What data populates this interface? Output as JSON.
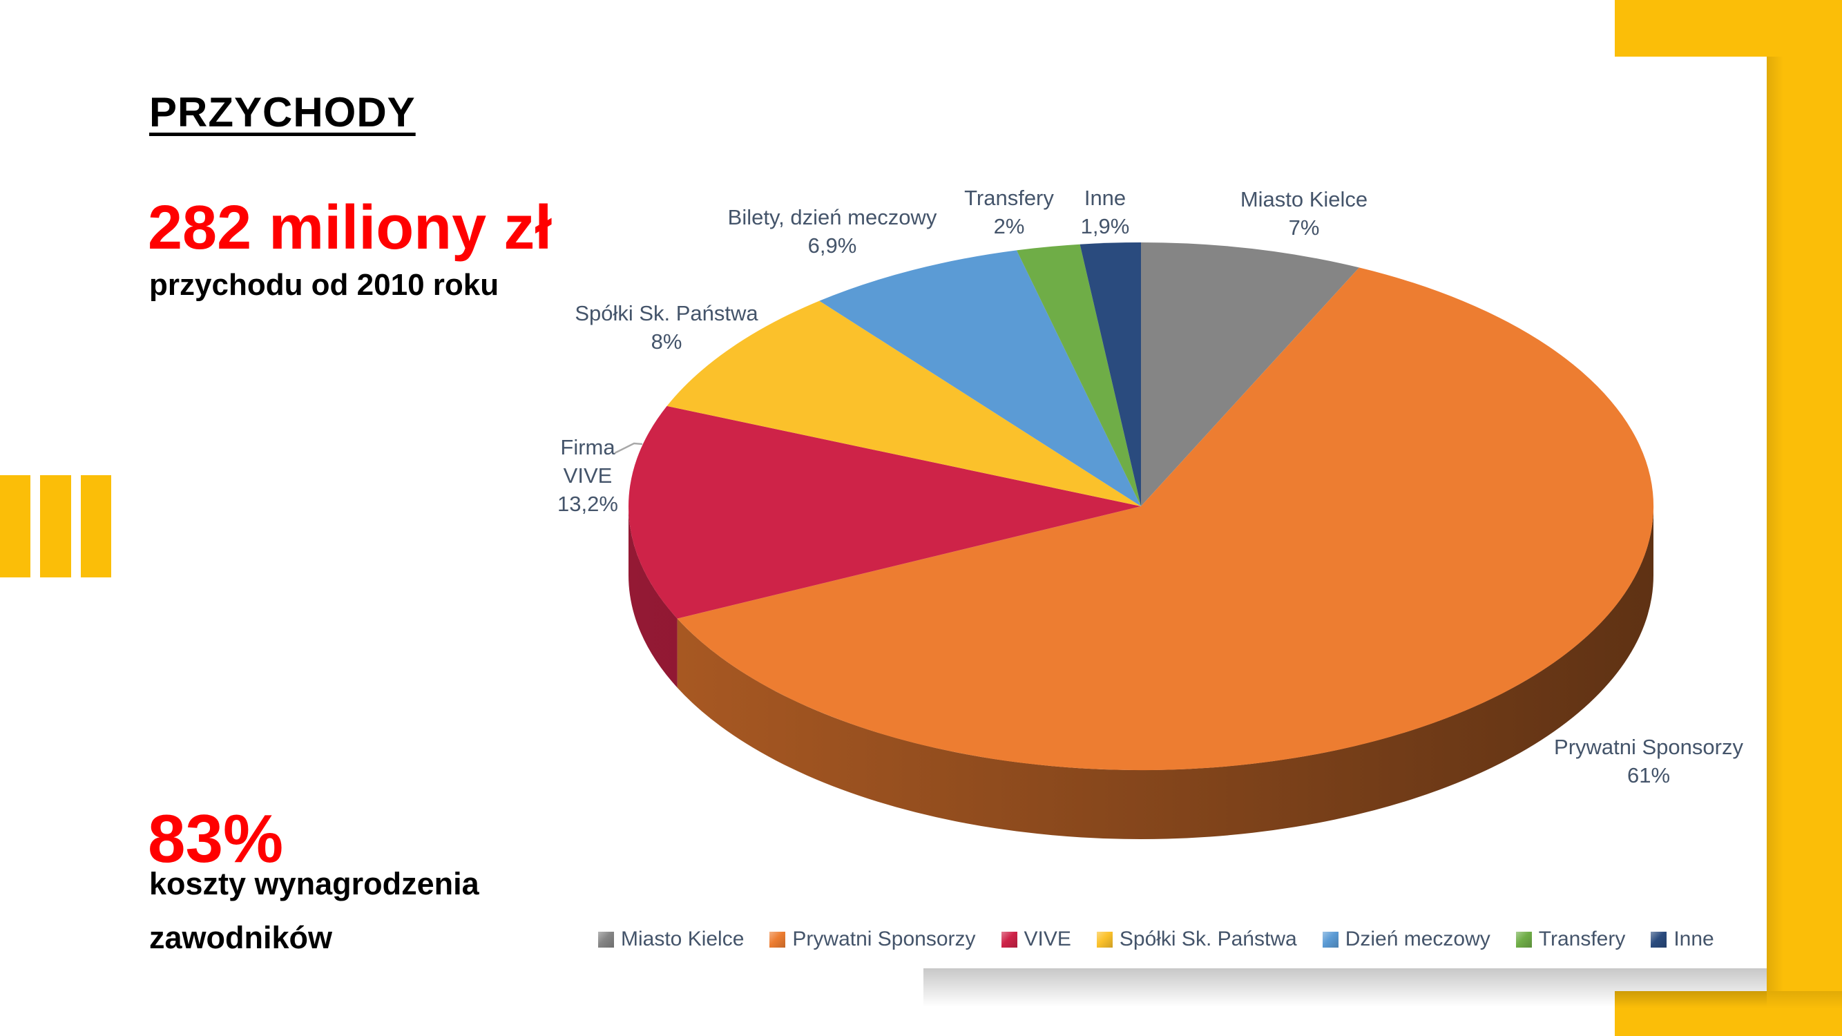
{
  "colors": {
    "accent_yellow": "#FBBE08",
    "headline_red": "#FF0000",
    "label_slate": "#44546A",
    "panel_white": "#FFFFFF"
  },
  "left_panel": {
    "title": "PRZYCHODY",
    "revenue_headline": "282 miliony zł",
    "revenue_subline": "przychodu od 2010 roku",
    "costs_headline": "83%",
    "costs_line1": "koszty wynagrodzenia",
    "costs_line2": "zawodników"
  },
  "chart_data": {
    "type": "pie",
    "is_3d": true,
    "start_angle_deg": 0,
    "direction": "clockwise",
    "legend_position": "bottom",
    "slices": [
      {
        "label": "Miasto Kielce",
        "legend": "Miasto Kielce",
        "value": 7,
        "display": "7%",
        "color": "#858585"
      },
      {
        "label": "Prywatni Sponsorzy",
        "legend": "Prywatni Sponsorzy",
        "value": 61,
        "display": "61%",
        "color": "#ED7D31"
      },
      {
        "label": "Firma VIVE",
        "legend": "VIVE",
        "value": 13.2,
        "display": "13,2%",
        "color": "#CE2348"
      },
      {
        "label": "Spółki Sk. Państwa",
        "legend": "Spółki Sk. Państwa",
        "value": 8,
        "display": "8%",
        "color": "#FBC12B"
      },
      {
        "label": "Bilety, dzień meczowy",
        "legend": "Dzień meczowy",
        "value": 6.9,
        "display": "6,9%",
        "color": "#5B9BD5"
      },
      {
        "label": "Transfery",
        "legend": "Transfery",
        "value": 2,
        "display": "2%",
        "color": "#6FAD47"
      },
      {
        "label": "Inne",
        "legend": "Inne",
        "value": 1.9,
        "display": "1,9%",
        "color": "#2A4B7E"
      }
    ]
  }
}
